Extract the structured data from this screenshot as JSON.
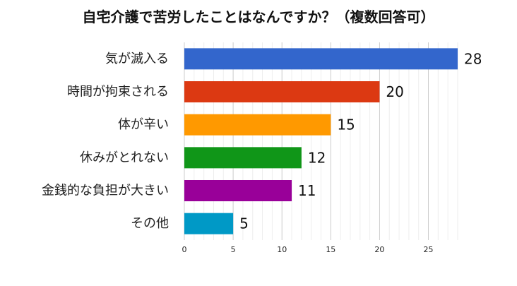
{
  "chart_data": {
    "type": "bar",
    "orientation": "horizontal",
    "title": "自宅介護で苦労したことはなんですか？（複数回答可）",
    "categories": [
      "気が滅入る",
      "時間が拘束される",
      "体が辛い",
      "休みがとれない",
      "金銭的な負担が大きい",
      "その他"
    ],
    "values": [
      28,
      20,
      15,
      12,
      11,
      5
    ],
    "colors": [
      "#3366cc",
      "#dc3912",
      "#ff9900",
      "#109618",
      "#990099",
      "#0099c6"
    ],
    "xlim": [
      0,
      28
    ],
    "xticks": [
      0,
      5,
      10,
      15,
      20,
      25
    ],
    "grid": true,
    "legend": "none",
    "xlabel": "",
    "ylabel": ""
  }
}
